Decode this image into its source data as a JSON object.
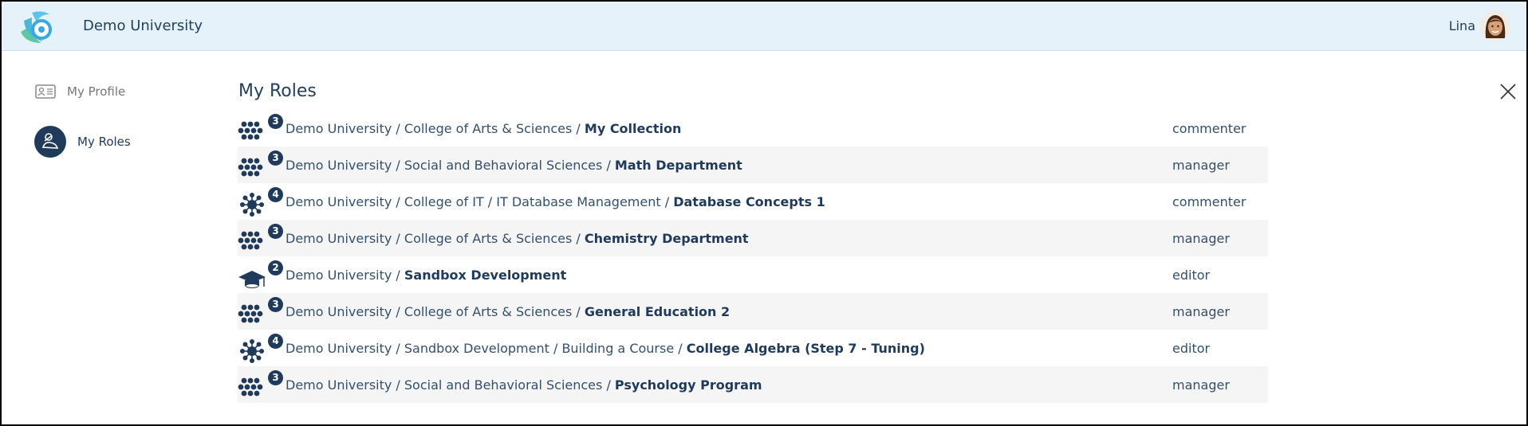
{
  "header": {
    "brand": "Demo University",
    "user": "Lina"
  },
  "sidebar": {
    "items": [
      {
        "label": "My Profile",
        "icon": "id-card-icon"
      },
      {
        "label": "My Roles",
        "icon": "roles-icon",
        "active": true
      }
    ]
  },
  "main": {
    "title": "My Roles",
    "rows": [
      {
        "icon": "collection",
        "count": "3",
        "path": "Demo University / College of Arts & Sciences / ",
        "name": "My Collection",
        "role": "commenter"
      },
      {
        "icon": "collection",
        "count": "3",
        "path": "Demo University / Social and Behavioral Sciences / ",
        "name": "Math Department",
        "role": "manager"
      },
      {
        "icon": "network",
        "count": "4",
        "path": "Demo University / College of IT / IT Database Management / ",
        "name": "Database Concepts 1",
        "role": "commenter"
      },
      {
        "icon": "collection",
        "count": "3",
        "path": "Demo University / College of Arts & Sciences / ",
        "name": "Chemistry Department",
        "role": "manager"
      },
      {
        "icon": "graduation-cap",
        "count": "2",
        "path": "Demo University / ",
        "name": "Sandbox Development",
        "role": "editor"
      },
      {
        "icon": "collection",
        "count": "3",
        "path": "Demo University / College of Arts & Sciences / ",
        "name": "General Education 2",
        "role": "manager"
      },
      {
        "icon": "network",
        "count": "4",
        "path": "Demo University / Sandbox Development / Building a Course / ",
        "name": "College Algebra (Step 7 - Tuning)",
        "role": "editor"
      },
      {
        "icon": "collection",
        "count": "3",
        "path": "Demo University / Social and Behavioral Sciences / ",
        "name": "Psychology Program",
        "role": "manager"
      }
    ]
  }
}
